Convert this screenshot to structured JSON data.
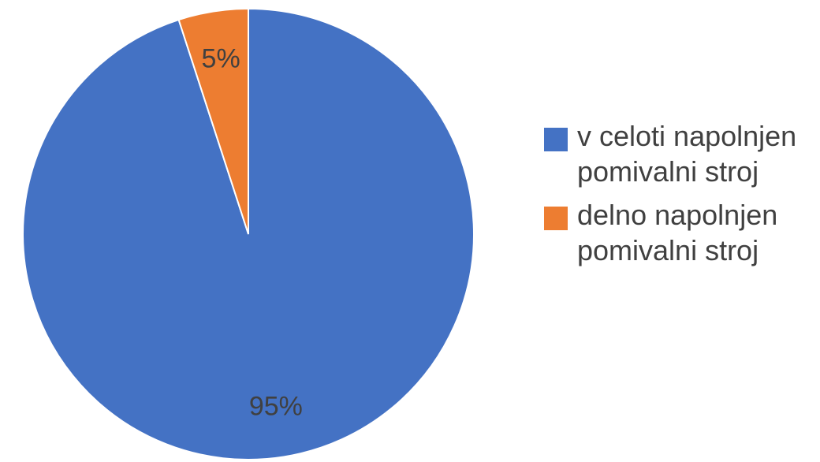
{
  "chart_data": {
    "type": "pie",
    "categories": [
      "v celoti napolnjen pomivalni stroj",
      "delno napolnjen pomivalni stroj"
    ],
    "values": [
      95,
      5
    ],
    "value_labels": [
      "95%",
      "5%"
    ],
    "colors": [
      "#4472c4",
      "#ed7d31"
    ],
    "legend": "right"
  }
}
